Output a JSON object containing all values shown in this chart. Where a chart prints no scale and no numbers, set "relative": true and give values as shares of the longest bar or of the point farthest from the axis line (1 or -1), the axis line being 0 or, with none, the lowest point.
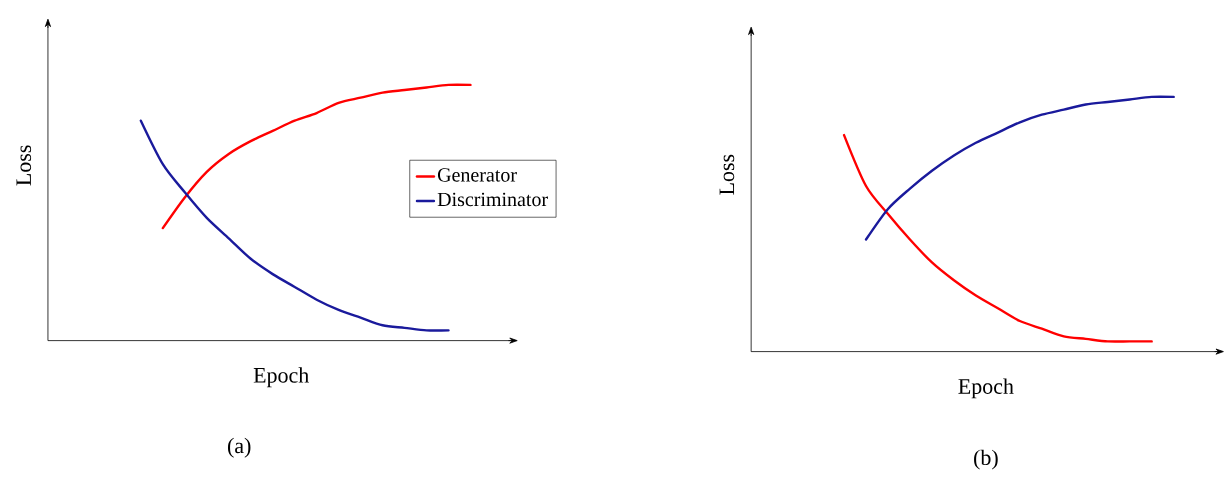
{
  "chart_data": [
    {
      "type": "line",
      "title": "(a)",
      "xlabel": "Epoch",
      "ylabel": "Loss",
      "relative": true,
      "legend": "right",
      "categories": [
        null,
        null,
        null,
        null,
        null,
        null,
        null,
        null,
        null,
        null,
        null,
        null,
        null,
        null,
        null,
        null
      ],
      "series": [
        {
          "name": "Generator",
          "color": "#ff0000",
          "values": [
            null,
            0.44,
            0.56,
            0.66,
            0.73,
            0.78,
            0.82,
            0.86,
            0.89,
            0.93,
            0.95,
            0.97,
            0.98,
            0.99,
            1.0,
            1.0
          ]
        },
        {
          "name": "Discriminator",
          "color": "#1a1a9c",
          "values": [
            0.86,
            0.69,
            0.58,
            0.48,
            0.4,
            0.32,
            0.26,
            0.21,
            0.16,
            0.12,
            0.09,
            0.06,
            0.05,
            0.04,
            0.04,
            null
          ]
        }
      ]
    },
    {
      "type": "line",
      "title": "(b)",
      "xlabel": "Epoch",
      "ylabel": "Loss",
      "relative": true,
      "categories": [
        null,
        null,
        null,
        null,
        null,
        null,
        null,
        null,
        null,
        null,
        null,
        null,
        null,
        null,
        null,
        null
      ],
      "series": [
        {
          "color": "#ff0000",
          "values": [
            0.85,
            0.65,
            0.54,
            0.44,
            0.35,
            0.28,
            0.22,
            0.17,
            0.12,
            0.09,
            0.06,
            0.05,
            0.04,
            0.04,
            0.04,
            null
          ]
        },
        {
          "color": "#1a1a9c",
          "values": [
            null,
            0.44,
            0.56,
            0.64,
            0.71,
            0.77,
            0.82,
            0.86,
            0.9,
            0.93,
            0.95,
            0.97,
            0.98,
            0.99,
            1.0,
            1.0
          ]
        }
      ]
    }
  ]
}
